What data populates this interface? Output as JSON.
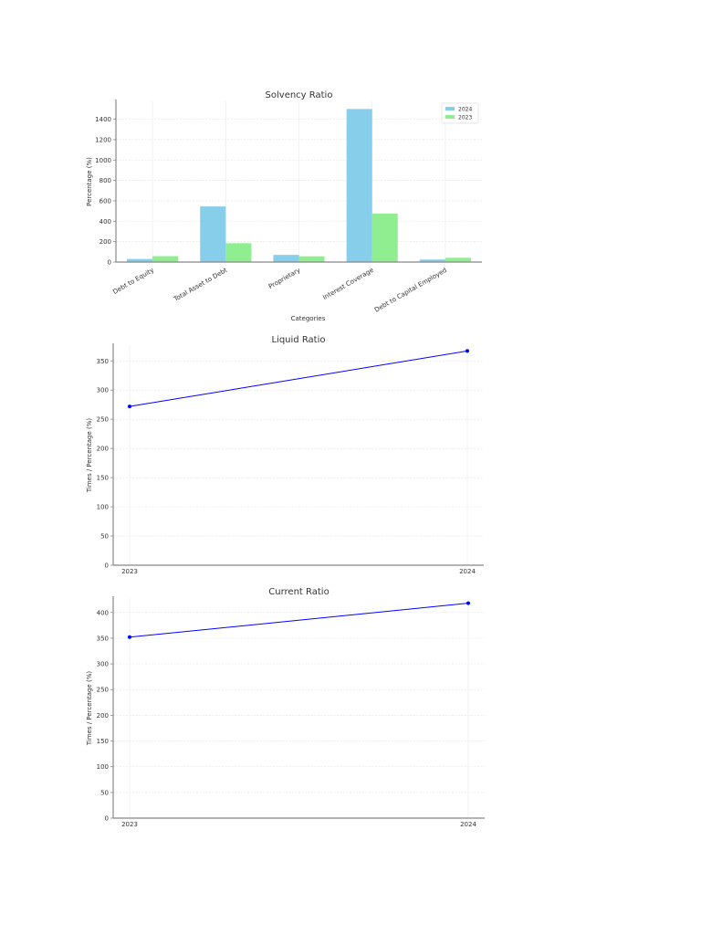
{
  "chart_data": [
    {
      "type": "bar",
      "title": "Solvency Ratio",
      "xlabel": "Categories",
      "ylabel": "Percentage (%)",
      "categories": [
        "Debt to Equity",
        "Total Asset to Debt",
        "Proprietary",
        "Interest Coverage",
        "Debt to Capital Employed"
      ],
      "series": [
        {
          "name": "2024",
          "color": "#87ceeb",
          "values": [
            30,
            545,
            70,
            1500,
            25
          ]
        },
        {
          "name": "2023",
          "color": "#90ee90",
          "values": [
            58,
            185,
            56,
            475,
            42
          ]
        }
      ],
      "yticks": [
        0,
        200,
        400,
        600,
        800,
        1000,
        1200,
        1400
      ],
      "ylim": [
        0,
        1575
      ],
      "grid": true,
      "legend_position": "upper right"
    },
    {
      "type": "line",
      "title": "Liquid Ratio",
      "xlabel": "",
      "ylabel": "Times / Percentage (%)",
      "x": [
        "2023",
        "2024"
      ],
      "series": [
        {
          "name": "Liquid Ratio",
          "color": "#0000ff",
          "values": [
            272,
            367
          ]
        }
      ],
      "yticks": [
        0,
        50,
        100,
        150,
        200,
        250,
        300,
        350
      ],
      "ylim": [
        0,
        377
      ],
      "grid": true
    },
    {
      "type": "line",
      "title": "Current Ratio",
      "xlabel": "",
      "ylabel": "Times / Percentage (%)",
      "x": [
        "2023",
        "2024"
      ],
      "series": [
        {
          "name": "Current Ratio",
          "color": "#0000ff",
          "values": [
            352,
            418
          ]
        }
      ],
      "yticks": [
        0,
        50,
        100,
        150,
        200,
        250,
        300,
        350,
        400
      ],
      "ylim": [
        0,
        428
      ],
      "grid": true
    }
  ]
}
